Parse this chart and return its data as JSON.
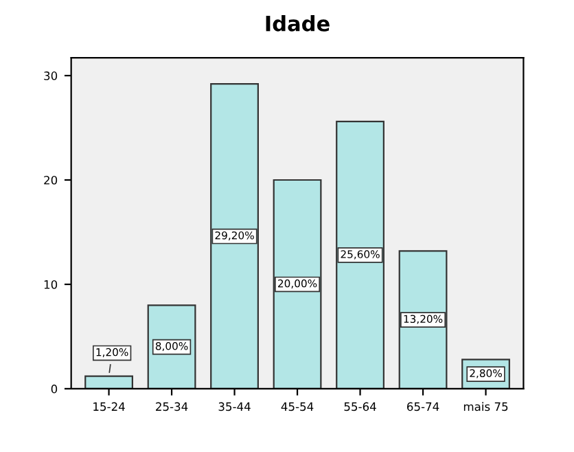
{
  "chart_data": {
    "type": "bar",
    "title": "Idade",
    "categories": [
      "15-24",
      "25-34",
      "35-44",
      "45-54",
      "55-64",
      "65-74",
      "mais 75"
    ],
    "values": [
      1.2,
      8.0,
      29.2,
      20.0,
      25.6,
      13.2,
      2.8
    ],
    "value_labels": [
      "1,20%",
      "8,00%",
      "29,20%",
      "20,00%",
      "25,60%",
      "13,20%",
      "2,80%"
    ],
    "color": "#b3e6e6",
    "ylim": [
      0,
      31.7
    ],
    "yticks": [
      0,
      10,
      20,
      30
    ],
    "grid": false,
    "legend": false
  }
}
